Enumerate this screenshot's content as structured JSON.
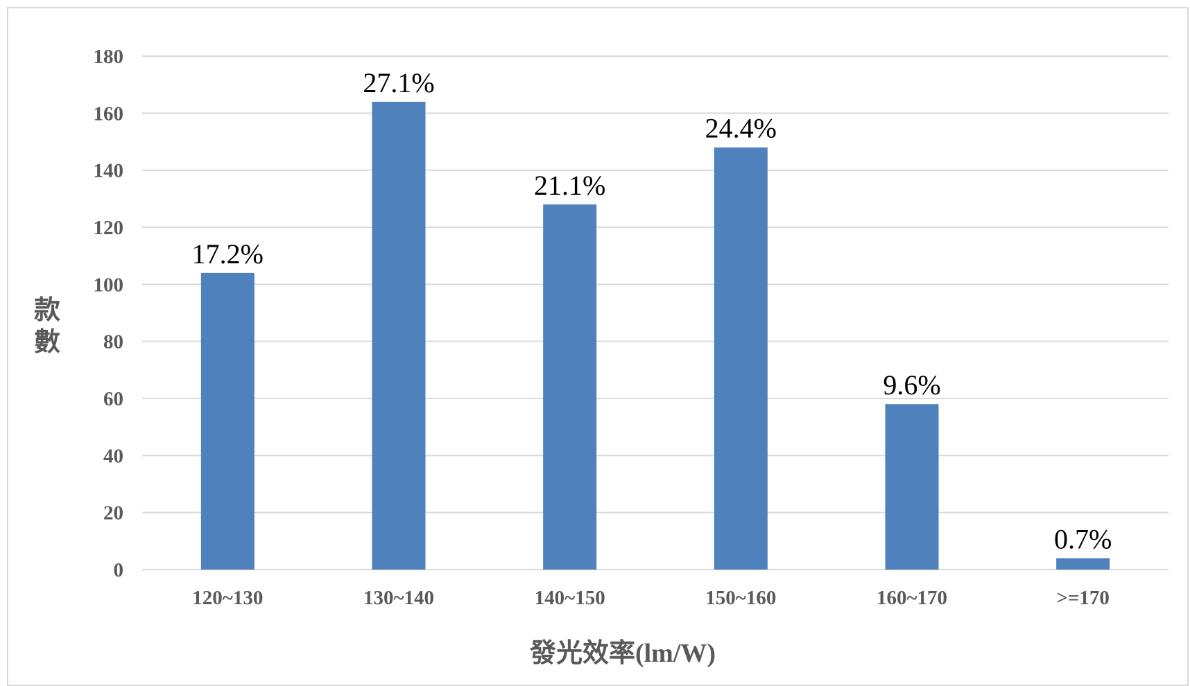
{
  "chart_data": {
    "type": "bar",
    "title": "",
    "xlabel": "發光效率(lm/W)",
    "ylabel": "款數",
    "categories": [
      "120~130",
      "130~140",
      "140~150",
      "150~160",
      "160~170",
      ">=170"
    ],
    "values": [
      104,
      164,
      128,
      148,
      58,
      4
    ],
    "data_labels": [
      "17.2%",
      "27.1%",
      "21.1%",
      "24.4%",
      "9.6%",
      "0.7%"
    ],
    "ylim": [
      0,
      180
    ],
    "yticks": [
      0,
      20,
      40,
      60,
      80,
      100,
      120,
      140,
      160,
      180
    ],
    "grid": true,
    "legend": "none",
    "bar_color": "#4f81bd",
    "grid_color": "#d9d9d9"
  }
}
